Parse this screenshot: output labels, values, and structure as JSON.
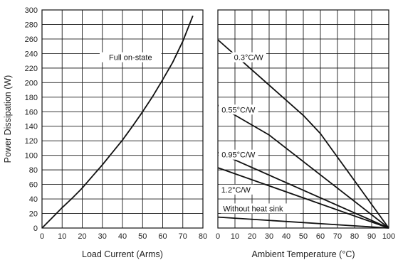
{
  "chart_data": [
    {
      "type": "line",
      "xlabel": "Load Current (Arms)",
      "ylabel": "Power Dissipation (W)",
      "xlim": [
        0,
        80
      ],
      "ylim": [
        0,
        300
      ],
      "xticks": [
        0,
        10,
        20,
        30,
        40,
        50,
        60,
        70,
        80
      ],
      "yticks": [
        0,
        20,
        40,
        60,
        80,
        100,
        120,
        140,
        160,
        180,
        200,
        220,
        240,
        260,
        280,
        300
      ],
      "grid": true,
      "annotations": [
        {
          "text": "Full on-state",
          "x": 44,
          "y": 232
        }
      ],
      "series": [
        {
          "name": "Full on-state",
          "x": [
            0,
            5,
            10,
            15,
            20,
            25,
            30,
            35,
            40,
            45,
            50,
            55,
            60,
            65,
            70,
            75
          ],
          "y": [
            0,
            14,
            28,
            41,
            55,
            71,
            87,
            104,
            121,
            140,
            160,
            181,
            204,
            228,
            257,
            292
          ]
        }
      ]
    },
    {
      "type": "line",
      "xlabel": "Ambient Temperature (°C)",
      "ylabel": "",
      "xlim": [
        0,
        100
      ],
      "ylim": [
        0,
        300
      ],
      "xticks": [
        0,
        10,
        20,
        30,
        40,
        50,
        60,
        70,
        80,
        90,
        100
      ],
      "grid": true,
      "series": [
        {
          "name": "0.3°C/W",
          "x": [
            0,
            50,
            60,
            100
          ],
          "y": [
            259,
            155,
            130,
            0
          ]
        },
        {
          "name": "0.55°C/W",
          "x": [
            0,
            30,
            100
          ],
          "y": [
            169,
            128,
            0
          ]
        },
        {
          "name": "0.95°C/W",
          "x": [
            0,
            100
          ],
          "y": [
            104,
            0
          ]
        },
        {
          "name": "1.2°C/W",
          "x": [
            0,
            100
          ],
          "y": [
            83,
            0
          ]
        },
        {
          "name": "Without heat sink",
          "x": [
            0,
            100
          ],
          "y": [
            15,
            0
          ]
        }
      ],
      "annotations": [
        {
          "text": "0.3°C/W",
          "x": 18,
          "y": 232
        },
        {
          "text": "0.55°C/W",
          "x": 12,
          "y": 160
        },
        {
          "text": "0.95°C/W",
          "x": 12,
          "y": 98
        },
        {
          "text": "1.2°C/W",
          "x": 2,
          "y": 50
        },
        {
          "text": "Without heat sink",
          "x": 3,
          "y": 24
        }
      ]
    }
  ]
}
